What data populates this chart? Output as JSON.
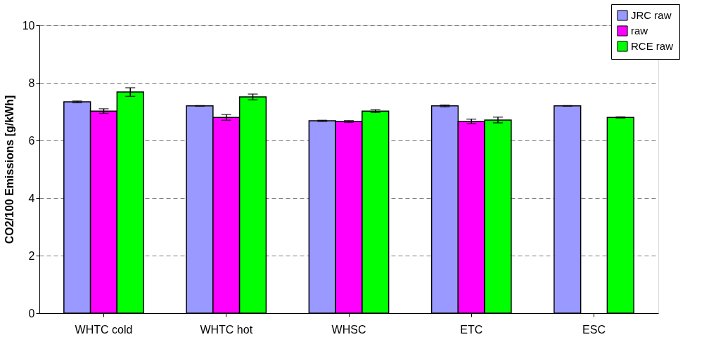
{
  "chart_data": {
    "type": "bar",
    "ylabel": "CO2/100 Emissions [g/kWh]",
    "categories": [
      "WHTC cold",
      "WHTC hot",
      "WHSC",
      "ETC",
      "ESC"
    ],
    "series": [
      {
        "name": "JRC raw",
        "color": "#9999ff",
        "values": [
          7.34,
          7.2,
          6.68,
          7.2,
          7.2
        ],
        "errors": [
          0.03,
          0.01,
          0.02,
          0.03,
          0.01
        ]
      },
      {
        "name": "raw",
        "color": "#ff00ff",
        "values": [
          7.02,
          6.8,
          6.66,
          6.66,
          null
        ],
        "errors": [
          0.08,
          0.1,
          0.03,
          0.08,
          null
        ]
      },
      {
        "name": "RCE raw",
        "color": "#00ff00",
        "values": [
          7.68,
          7.51,
          7.02,
          6.71,
          6.8
        ],
        "errors": [
          0.15,
          0.1,
          0.05,
          0.1,
          0.02
        ]
      }
    ],
    "ylim": [
      0,
      10
    ],
    "yticks": [
      0,
      2,
      4,
      6,
      8,
      10
    ],
    "grid": "y",
    "legend": "top right"
  }
}
